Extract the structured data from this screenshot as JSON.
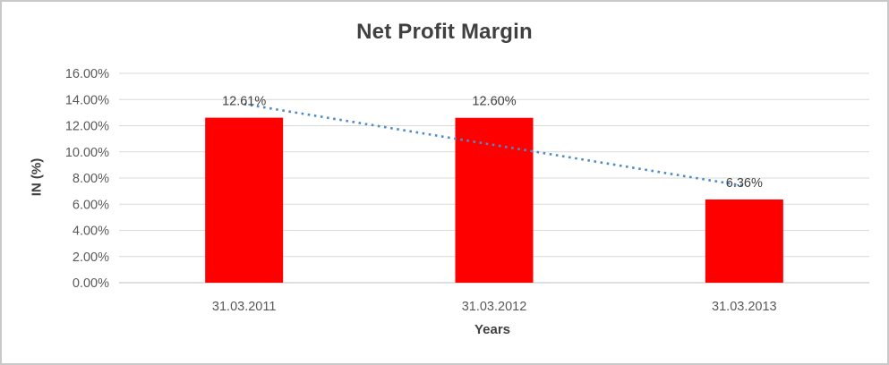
{
  "chart_data": {
    "type": "bar",
    "title": "Net Profit Margin",
    "xlabel": "Years",
    "ylabel": "IN (%)",
    "categories": [
      "31.03.2011",
      "31.03.2012",
      "31.03.2013"
    ],
    "values": [
      12.61,
      12.6,
      6.36
    ],
    "data_labels": [
      "12.61%",
      "12.60%",
      "6.36%"
    ],
    "ylim": [
      0,
      16
    ],
    "ytick_step": 2,
    "ytick_labels": [
      "0.00%",
      "2.00%",
      "4.00%",
      "6.00%",
      "8.00%",
      "10.00%",
      "12.00%",
      "14.00%",
      "16.00%"
    ],
    "grid": true,
    "legend": "none",
    "bar_color": "#FF0000",
    "trendline": {
      "type": "linear",
      "style": "dotted",
      "color": "#4E8CC9"
    },
    "colors": {
      "gridline": "#D9D9D9",
      "axis_line": "#BFBFBF",
      "tick_text": "#595959",
      "data_label_text": "#404040",
      "title_text": "#404040",
      "frame_border": "#C8C8C8",
      "background": "#FFFFFF"
    }
  }
}
